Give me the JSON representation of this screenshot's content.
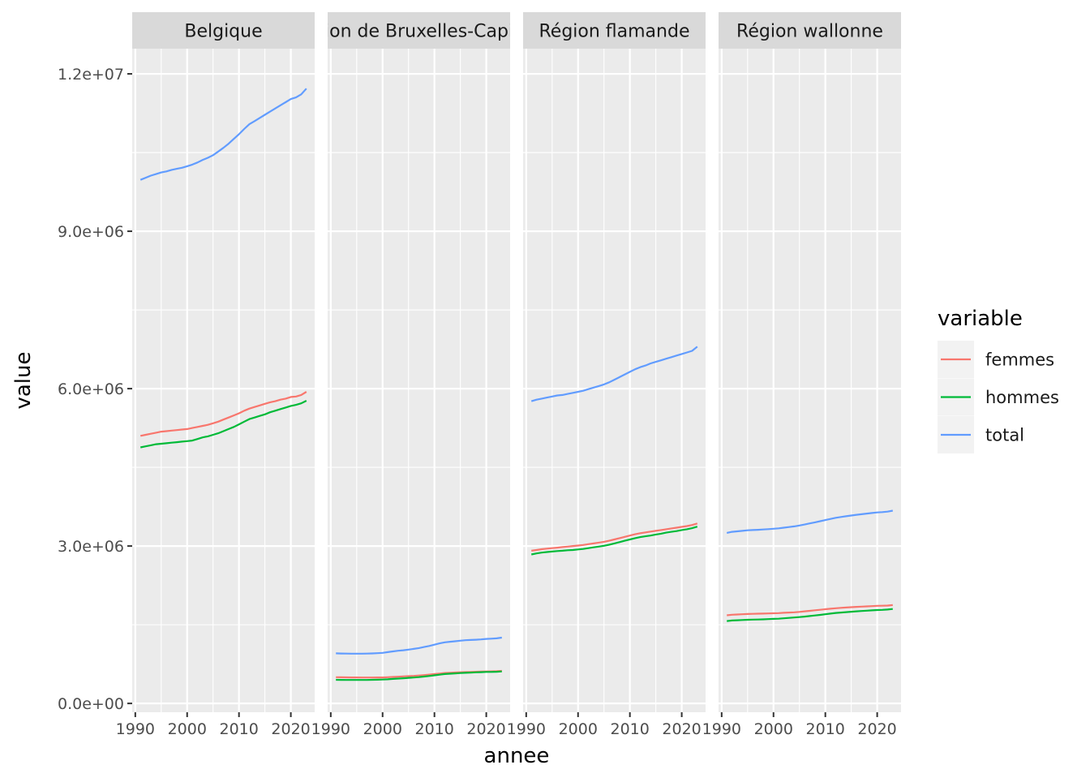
{
  "chart_data": {
    "type": "line",
    "facet_by": "region",
    "xlabel": "annee",
    "ylabel": "value",
    "xlim": [
      1991,
      2023
    ],
    "ylim": [
      0,
      12000000
    ],
    "x_ticks": [
      1990,
      2000,
      2010,
      2020
    ],
    "x_tick_labels": [
      "1990",
      "2000",
      "2010",
      "2020"
    ],
    "y_ticks": [
      0,
      3000000,
      6000000,
      9000000,
      12000000
    ],
    "y_tick_labels": [
      "0.0e+00",
      "3.0e+06",
      "6.0e+06",
      "9.0e+06",
      "1.2e+07"
    ],
    "grid": true,
    "legend": {
      "title": "variable",
      "position": "right",
      "entries": [
        {
          "name": "femmes",
          "color": "#F8766D"
        },
        {
          "name": "hommes",
          "color": "#00BA38"
        },
        {
          "name": "total",
          "color": "#619CFF"
        }
      ]
    },
    "x": [
      1991,
      1992,
      1993,
      1994,
      1995,
      1996,
      1997,
      1998,
      1999,
      2000,
      2001,
      2002,
      2003,
      2004,
      2005,
      2006,
      2007,
      2008,
      2009,
      2010,
      2011,
      2012,
      2013,
      2014,
      2015,
      2016,
      2017,
      2018,
      2019,
      2020,
      2021,
      2022,
      2023
    ],
    "facets": [
      {
        "label": "Belgique",
        "series": [
          {
            "name": "femmes",
            "values": [
              5100000,
              5120000,
              5140000,
              5160000,
              5180000,
              5190000,
              5200000,
              5210000,
              5220000,
              5230000,
              5250000,
              5270000,
              5290000,
              5310000,
              5340000,
              5370000,
              5410000,
              5450000,
              5490000,
              5530000,
              5580000,
              5620000,
              5650000,
              5680000,
              5710000,
              5740000,
              5760000,
              5790000,
              5810000,
              5840000,
              5850000,
              5880000,
              5940000
            ]
          },
          {
            "name": "hommes",
            "values": [
              4880000,
              4900000,
              4920000,
              4940000,
              4950000,
              4960000,
              4970000,
              4980000,
              4990000,
              5000000,
              5010000,
              5040000,
              5070000,
              5090000,
              5120000,
              5150000,
              5190000,
              5230000,
              5270000,
              5320000,
              5370000,
              5420000,
              5450000,
              5480000,
              5510000,
              5550000,
              5580000,
              5610000,
              5640000,
              5670000,
              5690000,
              5720000,
              5770000
            ]
          },
          {
            "name": "total",
            "values": [
              9980000,
              10020000,
              10060000,
              10090000,
              10120000,
              10140000,
              10170000,
              10190000,
              10210000,
              10240000,
              10270000,
              10310000,
              10360000,
              10400000,
              10450000,
              10520000,
              10590000,
              10670000,
              10760000,
              10850000,
              10950000,
              11040000,
              11100000,
              11160000,
              11220000,
              11280000,
              11340000,
              11400000,
              11460000,
              11520000,
              11550000,
              11610000,
              11720000
            ]
          }
        ]
      },
      {
        "label": "Région de Bruxelles-Capitale",
        "series": [
          {
            "name": "femmes",
            "values": [
              500000,
              498000,
              497000,
              496000,
              495000,
              494000,
              494000,
              494000,
              495000,
              496000,
              500000,
              505000,
              510000,
              515000,
              520000,
              525000,
              532000,
              540000,
              550000,
              560000,
              570000,
              580000,
              585000,
              590000,
              595000,
              598000,
              600000,
              603000,
              606000,
              610000,
              612000,
              614000,
              620000
            ]
          },
          {
            "name": "hommes",
            "values": [
              450000,
              449000,
              448000,
              447000,
              447000,
              447000,
              448000,
              450000,
              452000,
              455000,
              460000,
              467000,
              474000,
              480000,
              487000,
              494000,
              502000,
              512000,
              523000,
              535000,
              548000,
              560000,
              567000,
              573000,
              579000,
              584000,
              588000,
              592000,
              596000,
              600000,
              601000,
              603000,
              610000
            ]
          },
          {
            "name": "total",
            "values": [
              955000,
              952000,
              950000,
              949000,
              948000,
              949000,
              950000,
              953000,
              957000,
              964000,
              978000,
              992000,
              1004000,
              1014000,
              1025000,
              1039000,
              1055000,
              1075000,
              1095000,
              1120000,
              1145000,
              1165000,
              1175000,
              1185000,
              1195000,
              1205000,
              1210000,
              1215000,
              1220000,
              1230000,
              1235000,
              1240000,
              1255000
            ]
          }
        ]
      },
      {
        "label": "Région flamande",
        "series": [
          {
            "name": "femmes",
            "values": [
              2910000,
              2925000,
              2940000,
              2950000,
              2960000,
              2970000,
              2980000,
              2990000,
              3000000,
              3010000,
              3020000,
              3035000,
              3050000,
              3065000,
              3080000,
              3100000,
              3125000,
              3150000,
              3175000,
              3200000,
              3225000,
              3245000,
              3260000,
              3275000,
              3290000,
              3305000,
              3320000,
              3335000,
              3350000,
              3365000,
              3380000,
              3400000,
              3430000
            ]
          },
          {
            "name": "hommes",
            "values": [
              2840000,
              2860000,
              2875000,
              2885000,
              2895000,
              2905000,
              2910000,
              2920000,
              2925000,
              2935000,
              2945000,
              2960000,
              2975000,
              2990000,
              3005000,
              3025000,
              3050000,
              3075000,
              3100000,
              3125000,
              3150000,
              3170000,
              3185000,
              3200000,
              3220000,
              3235000,
              3255000,
              3270000,
              3285000,
              3305000,
              3320000,
              3340000,
              3370000
            ]
          },
          {
            "name": "total",
            "values": [
              5760000,
              5790000,
              5810000,
              5830000,
              5850000,
              5870000,
              5880000,
              5900000,
              5920000,
              5940000,
              5960000,
              5990000,
              6020000,
              6050000,
              6080000,
              6120000,
              6170000,
              6220000,
              6270000,
              6320000,
              6370000,
              6410000,
              6440000,
              6480000,
              6510000,
              6540000,
              6570000,
              6600000,
              6630000,
              6660000,
              6690000,
              6720000,
              6800000
            ]
          }
        ]
      },
      {
        "label": "Région wallonne",
        "series": [
          {
            "name": "femmes",
            "values": [
              1680000,
              1690000,
              1695000,
              1700000,
              1705000,
              1708000,
              1710000,
              1712000,
              1715000,
              1718000,
              1722000,
              1727000,
              1732000,
              1737000,
              1745000,
              1755000,
              1765000,
              1775000,
              1785000,
              1795000,
              1805000,
              1815000,
              1822000,
              1828000,
              1834000,
              1840000,
              1845000,
              1850000,
              1855000,
              1860000,
              1862000,
              1866000,
              1875000
            ]
          },
          {
            "name": "hommes",
            "values": [
              1570000,
              1580000,
              1585000,
              1590000,
              1595000,
              1598000,
              1600000,
              1603000,
              1607000,
              1611000,
              1615000,
              1622000,
              1630000,
              1638000,
              1646000,
              1655000,
              1666000,
              1677000,
              1688000,
              1700000,
              1712000,
              1724000,
              1732000,
              1740000,
              1748000,
              1755000,
              1762000,
              1768000,
              1774000,
              1780000,
              1784000,
              1790000,
              1800000
            ]
          },
          {
            "name": "total",
            "values": [
              3250000,
              3270000,
              3280000,
              3290000,
              3300000,
              3305000,
              3310000,
              3315000,
              3322000,
              3329000,
              3337000,
              3349000,
              3362000,
              3375000,
              3391000,
              3410000,
              3431000,
              3452000,
              3473000,
              3495000,
              3517000,
              3539000,
              3554000,
              3568000,
              3582000,
              3595000,
              3607000,
              3618000,
              3629000,
              3640000,
              3646000,
              3656000,
              3675000
            ]
          }
        ]
      }
    ]
  }
}
